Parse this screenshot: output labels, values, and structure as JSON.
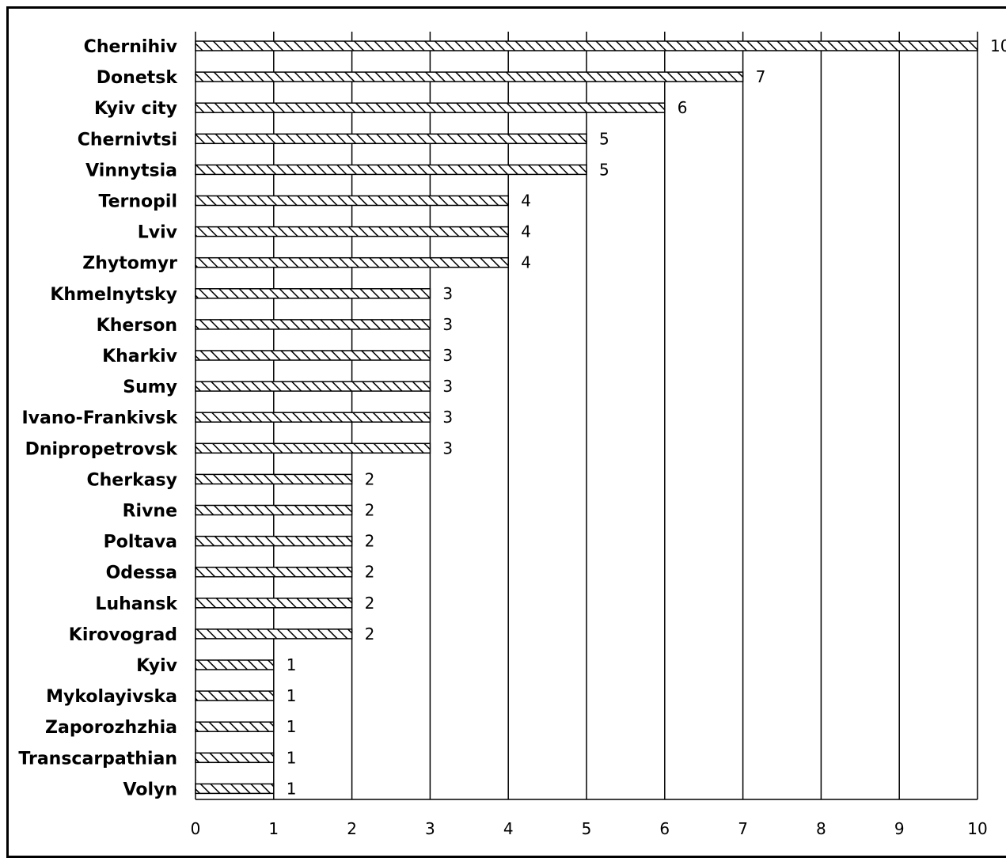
{
  "chart_data": {
    "type": "bar",
    "orientation": "horizontal",
    "categories": [
      "Chernihiv",
      "Donetsk",
      "Kyiv city",
      "Chernivtsi",
      "Vinnytsia",
      "Ternopil",
      "Lviv",
      "Zhytomyr",
      "Khmelnytsky",
      "Kherson",
      "Kharkiv",
      "Sumy",
      "Ivano-Frankivsk",
      "Dnipropetrovsk",
      "Cherkasy",
      "Rivne",
      "Poltava",
      "Odessa",
      "Luhansk",
      "Kirovograd",
      "Kyiv",
      "Mykolayivska",
      "Zaporozhzhia",
      "Transcarpathian",
      "Volyn"
    ],
    "values": [
      10,
      7,
      6,
      5,
      5,
      4,
      4,
      4,
      3,
      3,
      3,
      3,
      3,
      3,
      2,
      2,
      2,
      2,
      2,
      2,
      1,
      1,
      1,
      1,
      1
    ],
    "xlim": [
      0,
      10
    ],
    "xticks": [
      "0",
      "1",
      "2",
      "3",
      "4",
      "5",
      "6",
      "7",
      "8",
      "9",
      "10"
    ],
    "grid": true,
    "bar_pattern": "diagonal-hatch",
    "colors": {
      "bar_fill": "#ffffff",
      "hatch": "#000000",
      "grid": "#000000"
    },
    "title": "",
    "xlabel": "",
    "ylabel": ""
  }
}
